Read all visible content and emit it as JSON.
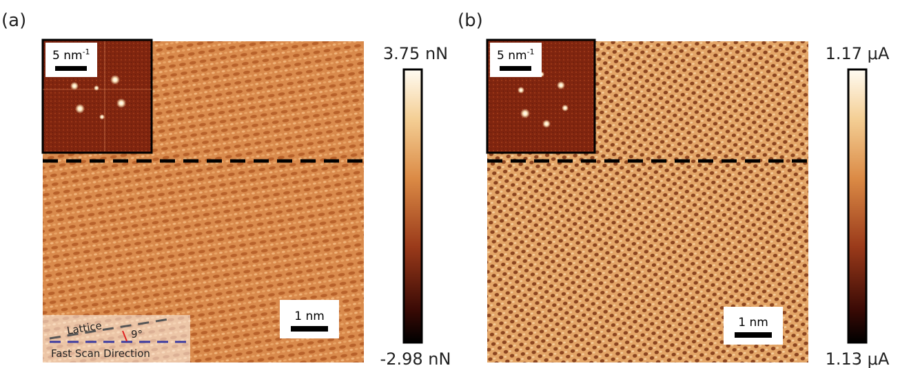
{
  "panels": [
    {
      "label": "(a)",
      "colorbar_max": "3.75 nN",
      "colorbar_min": "-2.98 nN",
      "inset_scale": {
        "text": "5 nm",
        "sup": "-1"
      },
      "scale_bar": "1 nm",
      "legend": {
        "lattice": "Lattice",
        "angle": "9°",
        "fast_scan": "Fast Scan Direction"
      }
    },
    {
      "label": "(b)",
      "colorbar_max": "1.17 μA",
      "colorbar_min": "1.13 μA",
      "inset_scale": {
        "text": "5 nm",
        "sup": "-1"
      },
      "scale_bar": "1 nm"
    }
  ]
}
